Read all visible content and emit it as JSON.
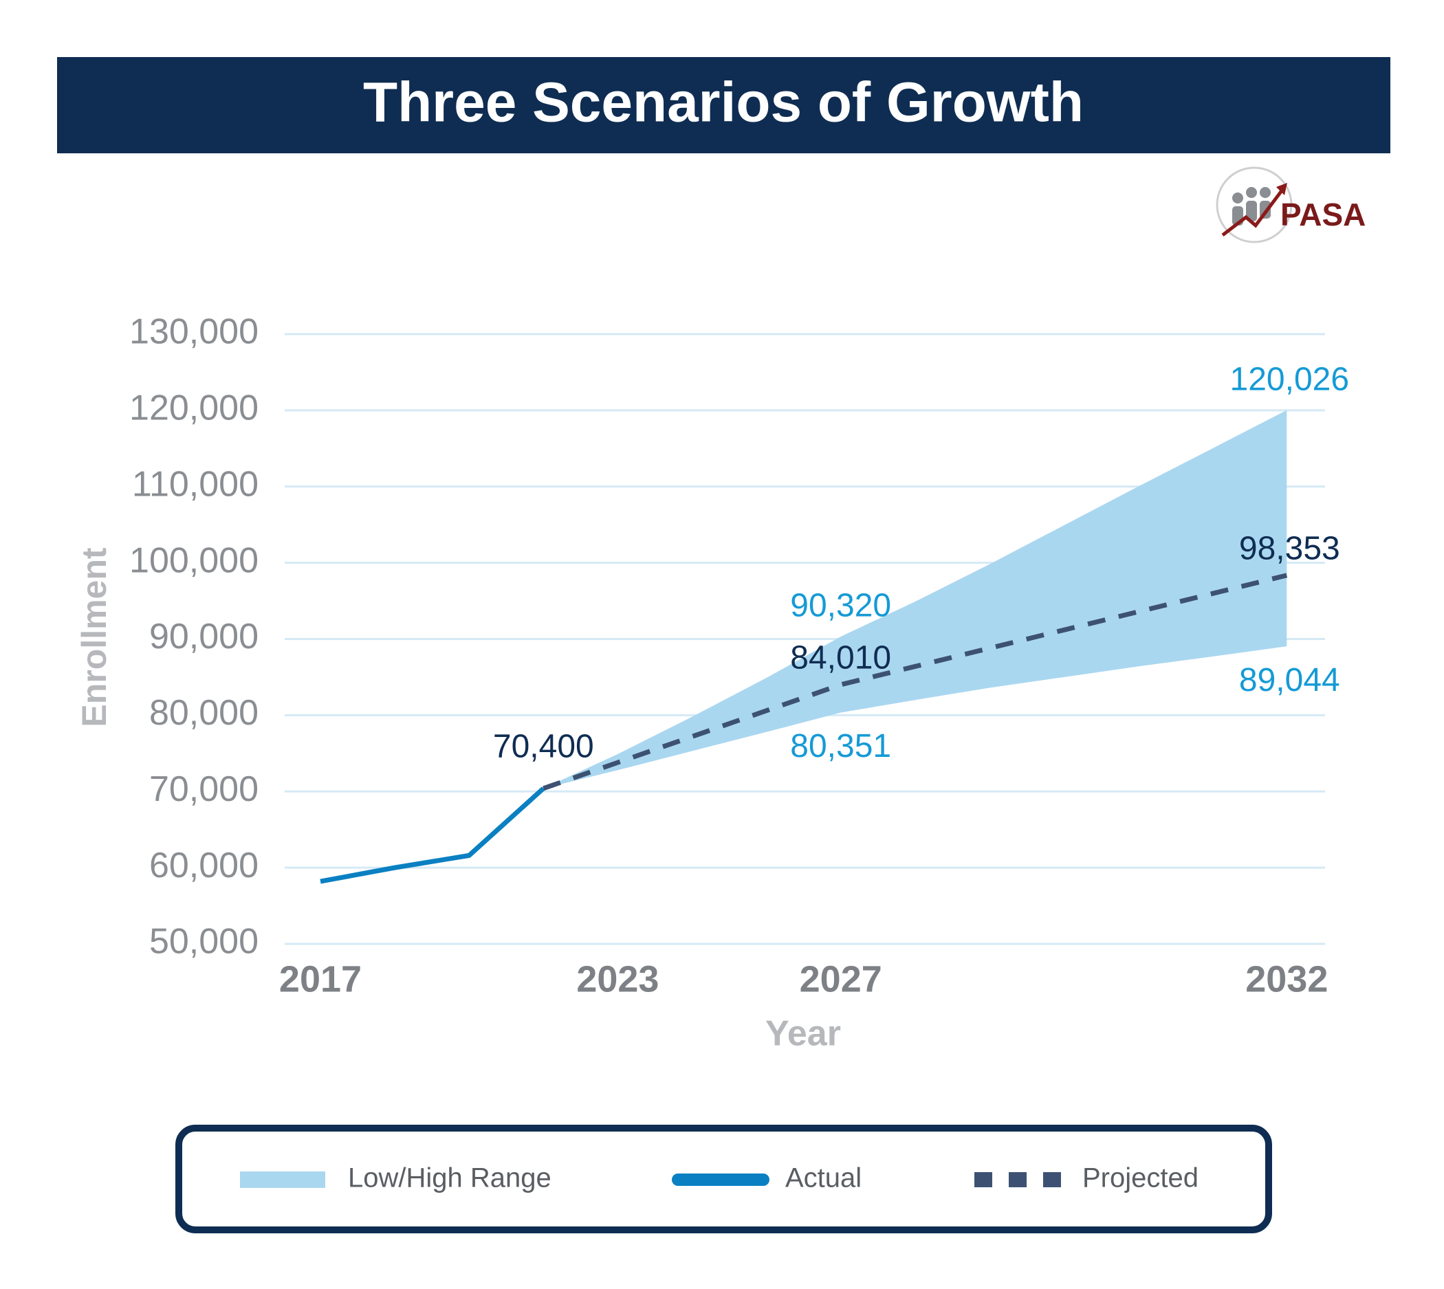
{
  "title": "Three Scenarios of Growth",
  "logo_text": "PASA",
  "chart_data": {
    "type": "line",
    "x_label": "Year",
    "y_label": "Enrollment",
    "categories": [
      "2017",
      null,
      null,
      null,
      "2023",
      null,
      null,
      "2027",
      null,
      null,
      null,
      null,
      null,
      "2032"
    ],
    "ylim": [
      50000,
      130000
    ],
    "yticks": [
      {
        "value": 50000,
        "label": "50,000"
      },
      {
        "value": 60000,
        "label": "60,000"
      },
      {
        "value": 70000,
        "label": "70,000"
      },
      {
        "value": 80000,
        "label": "80,000"
      },
      {
        "value": 90000,
        "label": "90,000"
      },
      {
        "value": 100000,
        "label": "100,000"
      },
      {
        "value": 110000,
        "label": "110,000"
      },
      {
        "value": 120000,
        "label": "120,000"
      },
      {
        "value": 130000,
        "label": "130,000"
      }
    ],
    "grid": true,
    "series": [
      {
        "name": "Low/High Range",
        "color": "#aad7f0",
        "label_color": "#159ad6",
        "high": [
          null,
          null,
          null,
          70400,
          74900,
          79800,
          84900,
          90320,
          94900,
          99800,
          104900,
          110000,
          115000,
          120026
        ],
        "high_value_labels": [
          null,
          null,
          null,
          null,
          null,
          null,
          null,
          "90,320",
          null,
          null,
          null,
          null,
          null,
          "120,026"
        ],
        "low": [
          null,
          null,
          null,
          70400,
          72800,
          75300,
          77800,
          80351,
          82000,
          83600,
          85000,
          86400,
          87700,
          89044
        ],
        "low_value_labels": [
          null,
          null,
          null,
          null,
          null,
          null,
          null,
          "80,351",
          null,
          null,
          null,
          null,
          null,
          "89,044"
        ]
      },
      {
        "name": "Actual",
        "color": "#0a80c2",
        "label_color": "#0f2d52",
        "values": [
          58200,
          60000,
          61600,
          70400,
          null,
          null,
          null,
          null,
          null,
          null,
          null,
          null,
          null,
          null
        ],
        "value_labels": [
          null,
          null,
          null,
          "70,400",
          null,
          null,
          null,
          null,
          null,
          null,
          null,
          null,
          null,
          null
        ]
      },
      {
        "name": "Projected",
        "color": "#3d5273",
        "label_color": "#0f2d52",
        "dashed": true,
        "values": [
          null,
          null,
          null,
          70400,
          73800,
          77200,
          80600,
          84010,
          86400,
          88790,
          91180,
          93570,
          95960,
          98353
        ],
        "value_labels": [
          null,
          null,
          null,
          null,
          null,
          null,
          null,
          "84,010",
          null,
          null,
          null,
          null,
          null,
          "98,353"
        ]
      }
    ]
  }
}
